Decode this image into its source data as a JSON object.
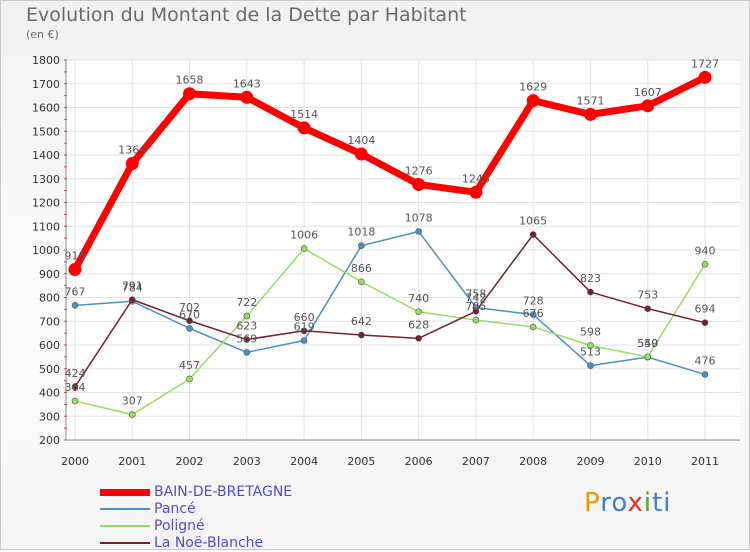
{
  "chart_data": {
    "type": "line",
    "title": "Evolution du Montant de la Dette par Habitant",
    "subtitle": "(en €)",
    "categories": [
      "2000",
      "2001",
      "2002",
      "2003",
      "2004",
      "2005",
      "2006",
      "2007",
      "2008",
      "2009",
      "2010",
      "2011"
    ],
    "ylim": [
      200,
      1800
    ],
    "yticks": [
      200,
      300,
      400,
      500,
      600,
      700,
      800,
      900,
      1000,
      1100,
      1200,
      1300,
      1400,
      1500,
      1600,
      1700,
      1800
    ],
    "grid": true,
    "legend_position": "bottom-left",
    "series": [
      {
        "name": "BAIN-DE-BRETAGNE",
        "color": "#ff0000",
        "values": [
          918,
          1364,
          1658,
          1643,
          1514,
          1404,
          1276,
          1243,
          1629,
          1571,
          1607,
          1727
        ]
      },
      {
        "name": "Pancé",
        "color": "#4a90c8",
        "values": [
          767,
          784,
          670,
          569,
          619,
          1018,
          1078,
          758,
          728,
          513,
          549,
          476
        ]
      },
      {
        "name": "Poligné",
        "color": "#90e060",
        "values": [
          364,
          307,
          457,
          722,
          1006,
          866,
          740,
          705,
          676,
          598,
          550,
          940
        ]
      },
      {
        "name": "La Noë-Blanche",
        "color": "#7a1f2a",
        "values": [
          424,
          791,
          702,
          623,
          660,
          642,
          628,
          742,
          1065,
          823,
          753,
          694
        ]
      }
    ]
  },
  "logo": {
    "p": "P",
    "r": "ro",
    "x": "x",
    "i": "i",
    "t": "ti"
  }
}
